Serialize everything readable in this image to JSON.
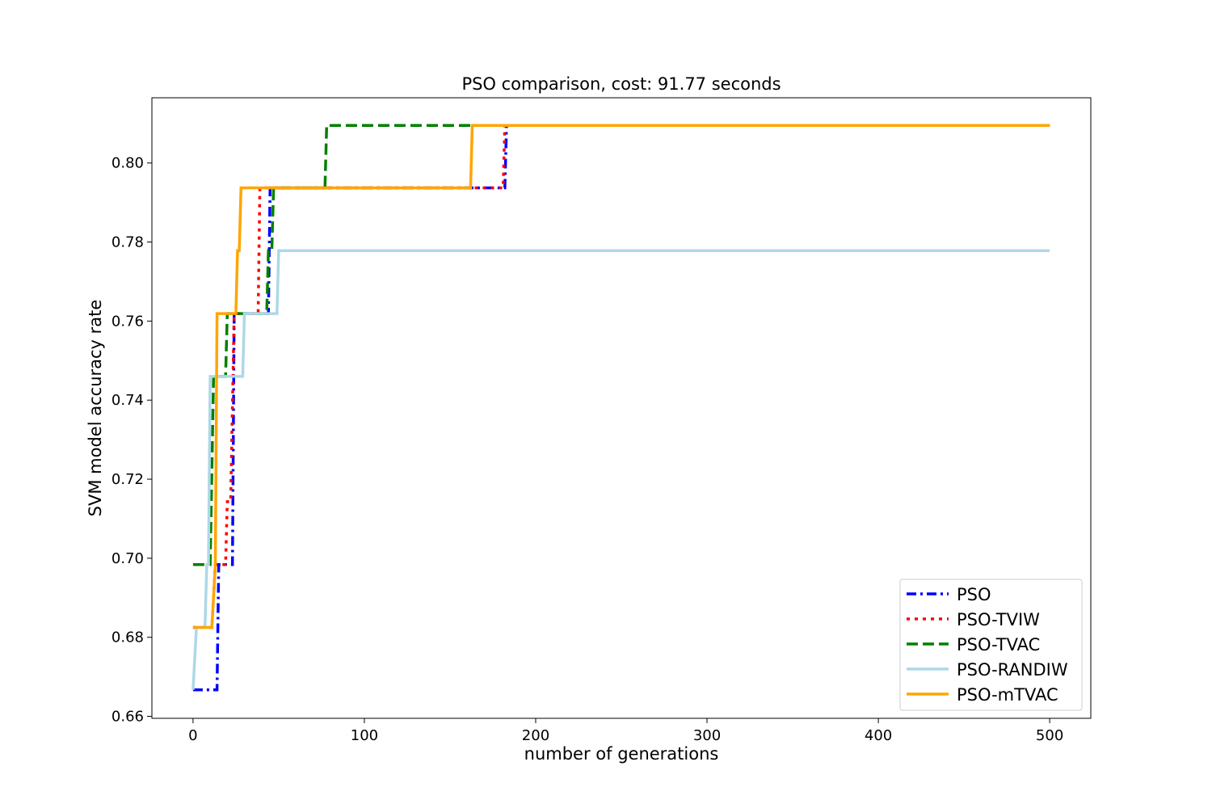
{
  "chart_data": {
    "type": "line",
    "title": "PSO comparison, cost: 91.77 seconds",
    "xlabel": "number of generations",
    "ylabel": "SVM model accuracy rate",
    "xlim": [
      -24,
      524
    ],
    "ylim": [
      0.6595,
      0.8165
    ],
    "xticks": [
      0,
      100,
      200,
      300,
      400,
      500
    ],
    "yticks": [
      0.66,
      0.68,
      0.7,
      0.72,
      0.74,
      0.76,
      0.78,
      0.8
    ],
    "ytick_labels": [
      "0.66",
      "0.68",
      "0.70",
      "0.72",
      "0.74",
      "0.76",
      "0.78",
      "0.80"
    ],
    "xtick_labels": [
      "0",
      "100",
      "200",
      "300",
      "400",
      "500"
    ],
    "grid": false,
    "legend_position": "lower-right",
    "series": [
      {
        "name": "PSO",
        "color": "#0000ff",
        "dash": "dashdot",
        "points": [
          [
            0,
            0.6667
          ],
          [
            14,
            0.6667
          ],
          [
            15,
            0.6984
          ],
          [
            23,
            0.6984
          ],
          [
            24,
            0.7619
          ],
          [
            44,
            0.7619
          ],
          [
            45,
            0.7937
          ],
          [
            182,
            0.7937
          ],
          [
            183,
            0.8095
          ],
          [
            500,
            0.8095
          ]
        ]
      },
      {
        "name": "PSO-TVIW",
        "color": "#ff0000",
        "dash": "dotted",
        "points": [
          [
            0,
            0.6825
          ],
          [
            11,
            0.6825
          ],
          [
            13,
            0.6984
          ],
          [
            19,
            0.6984
          ],
          [
            20,
            0.7143
          ],
          [
            22,
            0.7143
          ],
          [
            24,
            0.7619
          ],
          [
            38,
            0.7619
          ],
          [
            39,
            0.7937
          ],
          [
            181,
            0.7937
          ],
          [
            182,
            0.8095
          ],
          [
            500,
            0.8095
          ]
        ]
      },
      {
        "name": "PSO-TVAC",
        "color": "#008000",
        "dash": "dashed",
        "points": [
          [
            0,
            0.6984
          ],
          [
            10,
            0.6984
          ],
          [
            12,
            0.746
          ],
          [
            19,
            0.746
          ],
          [
            20,
            0.7619
          ],
          [
            43,
            0.7619
          ],
          [
            44,
            0.7778
          ],
          [
            46,
            0.7778
          ],
          [
            47,
            0.7937
          ],
          [
            77,
            0.7937
          ],
          [
            78,
            0.8095
          ],
          [
            500,
            0.8095
          ]
        ]
      },
      {
        "name": "PSO-RANDIW",
        "color": "#add8e6",
        "dash": "solid",
        "points": [
          [
            0,
            0.6667
          ],
          [
            2,
            0.6825
          ],
          [
            7,
            0.6825
          ],
          [
            8,
            0.6984
          ],
          [
            9,
            0.6984
          ],
          [
            10,
            0.746
          ],
          [
            29,
            0.746
          ],
          [
            30,
            0.7619
          ],
          [
            49,
            0.7619
          ],
          [
            50,
            0.7778
          ],
          [
            500,
            0.7778
          ]
        ]
      },
      {
        "name": "PSO-mTVAC",
        "color": "#ffa500",
        "dash": "solid",
        "points": [
          [
            0,
            0.6825
          ],
          [
            11,
            0.6825
          ],
          [
            13,
            0.6984
          ],
          [
            14,
            0.7619
          ],
          [
            25,
            0.7619
          ],
          [
            26,
            0.7778
          ],
          [
            27,
            0.7778
          ],
          [
            28,
            0.7937
          ],
          [
            162,
            0.7937
          ],
          [
            163,
            0.8095
          ],
          [
            500,
            0.8095
          ]
        ]
      }
    ]
  }
}
